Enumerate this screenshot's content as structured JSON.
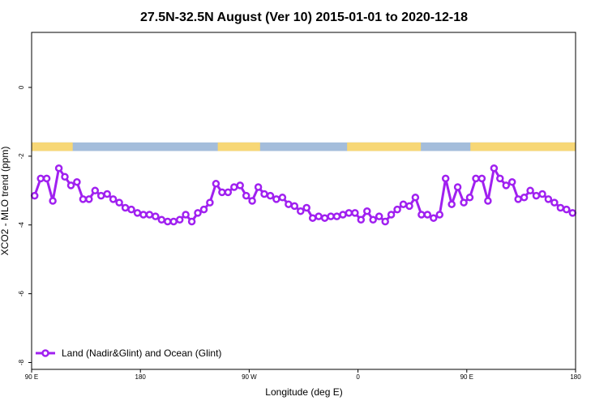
{
  "chart_data": {
    "type": "line",
    "title": "27.5N-32.5N August (Ver 10)   2015-01-01 to 2020-12-18",
    "xlabel": "Longitude (deg E)",
    "ylabel": "XCO2 - MLO trend (ppm)",
    "xlim": [
      90,
      540
    ],
    "ylim": [
      -8.2,
      1.6
    ],
    "x_ticks": [
      {
        "value": 90,
        "label": "90 E"
      },
      {
        "value": 180,
        "label": "180"
      },
      {
        "value": 270,
        "label": "90 W"
      },
      {
        "value": 360,
        "label": "0"
      },
      {
        "value": 450,
        "label": "90 E"
      },
      {
        "value": 540,
        "label": "180"
      }
    ],
    "y_ticks": [
      {
        "value": 0,
        "label": "0"
      },
      {
        "value": -2,
        "label": "-2"
      },
      {
        "value": -4,
        "label": "-4"
      },
      {
        "value": -6,
        "label": "-6"
      },
      {
        "value": -8,
        "label": "-8"
      }
    ],
    "legend": {
      "position": "bottom-left",
      "label": "Land (Nadir&Glint) and Ocean (Glint)"
    },
    "surface_strip": {
      "y_range": [
        -1.85,
        -1.6
      ],
      "ocean_color": "#a4bddb",
      "land_color": "#f7d776",
      "land_segments": [
        [
          90,
          124
        ],
        [
          244,
          279
        ],
        [
          351,
          412
        ],
        [
          453,
          546
        ]
      ]
    },
    "series": [
      {
        "name": "Land (Nadir&Glint) and Ocean (Glint)",
        "color": "#a020f0",
        "x": [
          92.5,
          97.5,
          102.5,
          107.5,
          112.5,
          117.5,
          122.5,
          127.5,
          132.5,
          137.5,
          142.5,
          147.5,
          152.5,
          157.5,
          162.5,
          167.5,
          172.5,
          177.5,
          182.5,
          187.5,
          192.5,
          197.5,
          202.5,
          207.5,
          212.5,
          217.5,
          222.5,
          227.5,
          232.5,
          237.5,
          242.5,
          247.5,
          252.5,
          257.5,
          262.5,
          267.5,
          272.5,
          277.5,
          282.5,
          287.5,
          292.5,
          297.5,
          302.5,
          307.5,
          312.5,
          317.5,
          322.5,
          327.5,
          332.5,
          337.5,
          342.5,
          347.5,
          352.5,
          357.5,
          362.5,
          367.5,
          372.5,
          377.5,
          382.5,
          387.5,
          392.5,
          397.5,
          402.5,
          407.5,
          412.5,
          417.5,
          422.5,
          427.5,
          432.5,
          437.5,
          442.5,
          447.5,
          452.5,
          457.5,
          462.5,
          467.5,
          472.5,
          477.5,
          482.5,
          487.5,
          492.5,
          497.5,
          502.5,
          507.5,
          512.5,
          517.5,
          522.5,
          527.5,
          532.5,
          537.5
        ],
        "values": [
          -3.15,
          -2.65,
          -2.65,
          -3.3,
          -2.35,
          -2.6,
          -2.85,
          -2.75,
          -3.25,
          -3.25,
          -3.0,
          -3.15,
          -3.1,
          -3.25,
          -3.35,
          -3.5,
          -3.55,
          -3.65,
          -3.7,
          -3.7,
          -3.75,
          -3.85,
          -3.9,
          -3.9,
          -3.85,
          -3.7,
          -3.9,
          -3.65,
          -3.55,
          -3.35,
          -2.8,
          -3.05,
          -3.05,
          -2.9,
          -2.85,
          -3.15,
          -3.3,
          -2.9,
          -3.1,
          -3.15,
          -3.25,
          -3.2,
          -3.4,
          -3.45,
          -3.6,
          -3.5,
          -3.8,
          -3.75,
          -3.8,
          -3.75,
          -3.75,
          -3.7,
          -3.65,
          -3.65,
          -3.85,
          -3.6,
          -3.85,
          -3.75,
          -3.9,
          -3.7,
          -3.55,
          -3.4,
          -3.45,
          -3.2,
          -3.7,
          -3.7,
          -3.8,
          -3.7,
          -2.65,
          -3.4,
          -2.9,
          -3.35,
          -3.2,
          -2.65,
          -2.65,
          -3.3,
          -2.35,
          -2.65,
          -2.85,
          -2.75,
          -3.25,
          -3.2,
          -3.0,
          -3.15,
          -3.1,
          -3.25,
          -3.35,
          -3.5,
          -3.55,
          -3.65
        ]
      }
    ]
  }
}
